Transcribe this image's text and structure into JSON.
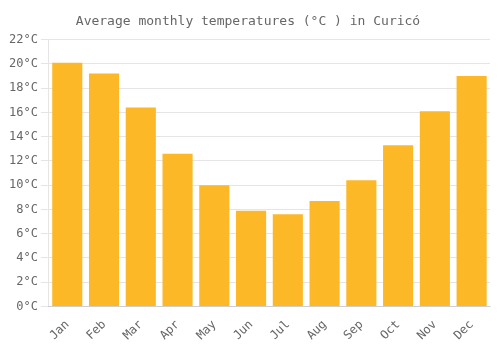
{
  "chart_data": {
    "type": "bar",
    "title": "Average monthly temperatures (°C ) in Curicó",
    "categories": [
      "Jan",
      "Feb",
      "Mar",
      "Apr",
      "May",
      "Jun",
      "Jul",
      "Aug",
      "Sep",
      "Oct",
      "Nov",
      "Dec"
    ],
    "values": [
      20.1,
      19.2,
      16.4,
      12.6,
      10.0,
      7.9,
      7.6,
      8.7,
      10.4,
      13.3,
      16.1,
      19.0
    ],
    "color": "#FDB827",
    "ylim": [
      0,
      22
    ],
    "yticks": [
      {
        "value": 0,
        "label": "0°C"
      },
      {
        "value": 2,
        "label": "2°C"
      },
      {
        "value": 4,
        "label": "4°C"
      },
      {
        "value": 6,
        "label": "6°C"
      },
      {
        "value": 8,
        "label": "8°C"
      },
      {
        "value": 10,
        "label": "10°C"
      },
      {
        "value": 12,
        "label": "12°C"
      },
      {
        "value": 14,
        "label": "14°C"
      },
      {
        "value": 16,
        "label": "16°C"
      },
      {
        "value": 18,
        "label": "18°C"
      },
      {
        "value": 20,
        "label": "20°C"
      },
      {
        "value": 22,
        "label": "22°C"
      }
    ],
    "grid": true
  }
}
